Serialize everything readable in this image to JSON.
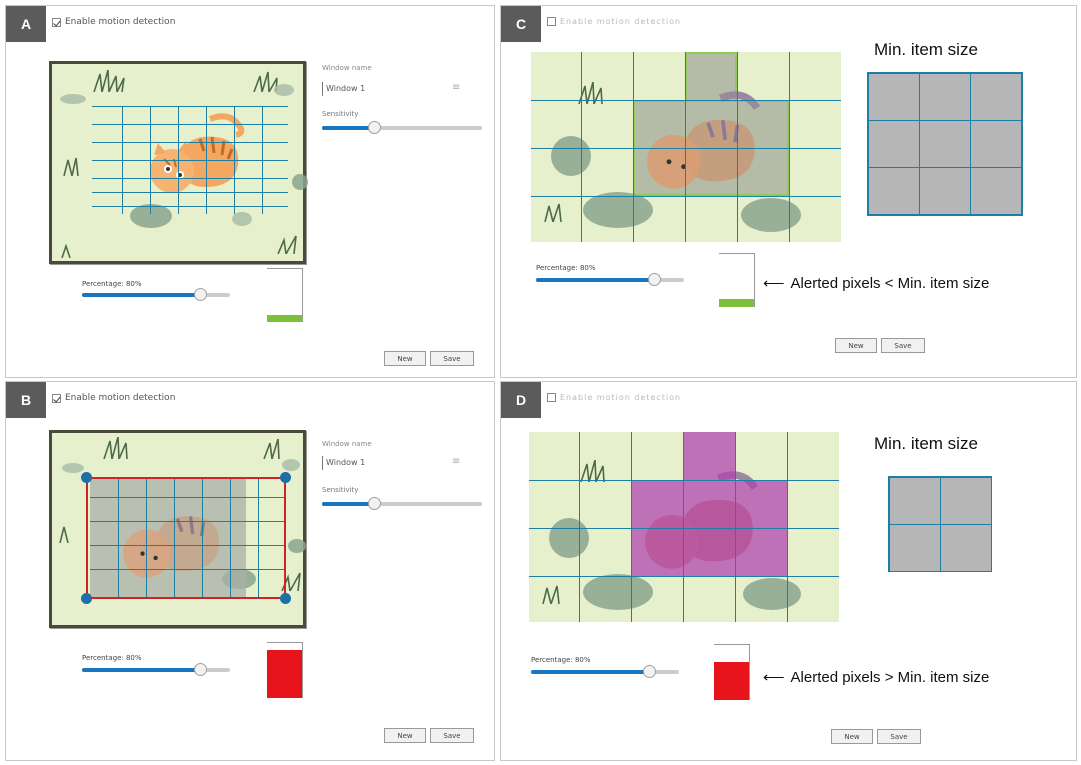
{
  "panels": [
    {
      "id": "A",
      "letter": "A",
      "header": "Enable motion detection",
      "window_name_label": "Window name",
      "name_value": "Window 1",
      "sensitivity_label": "Sensitivity",
      "percentage_label": "Percentage: 80%",
      "buttons": {
        "new": "New",
        "save": "Save"
      },
      "meter_color": "#7cc13a"
    },
    {
      "id": "B",
      "letter": "B",
      "header": "Enable motion detection",
      "window_name_label": "Window name",
      "name_value": "Window 1",
      "sensitivity_label": "Sensitivity",
      "percentage_label": "Percentage: 80%",
      "buttons": {
        "new": "New",
        "save": "Save"
      },
      "meter_color": "#e8141c"
    },
    {
      "id": "C",
      "letter": "C",
      "header": "Enable motion detection",
      "percentage_label": "Percentage: 80%",
      "buttons": {
        "new": "New",
        "save": "Save"
      },
      "min_item_title": "Min. item size",
      "annotation": "Alerted pixels < Min. item size",
      "meter_color": "#7cc13a"
    },
    {
      "id": "D",
      "letter": "D",
      "header": "Enable motion detection",
      "percentage_label": "Percentage: 80%",
      "buttons": {
        "new": "New",
        "save": "Save"
      },
      "min_item_title": "Min. item size",
      "annotation": "Alerted pixels > Min. item size",
      "meter_color": "#e8141c"
    }
  ],
  "colors": {
    "grid_line": "#1f7ea3",
    "slider_fill": "#1976c2",
    "scene_bg": "#e6f0cc",
    "roi_border": "#d02424",
    "alert_overlay_c": "#9aa89a",
    "alert_overlay_d": "#b040b0"
  },
  "icons": [
    "checkbox-icon",
    "list-icon",
    "arrow-left-icon",
    "roi-handle-icon"
  ]
}
